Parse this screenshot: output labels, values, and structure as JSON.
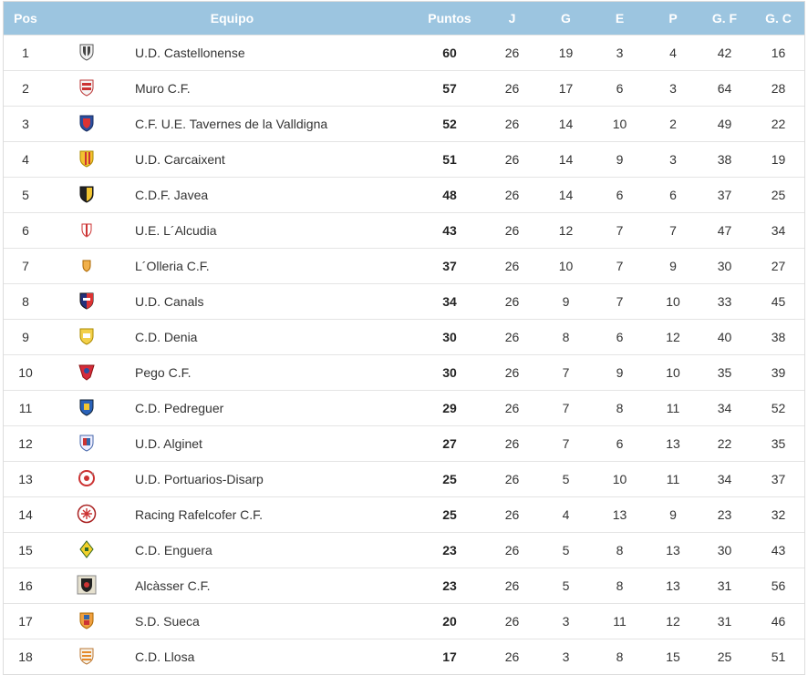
{
  "header": {
    "pos": "Pos",
    "team": "Equipo",
    "points": "Puntos",
    "played": "J",
    "won": "G",
    "drawn": "E",
    "lost": "P",
    "gf": "G. F",
    "gc": "G. C"
  },
  "rows": [
    {
      "pos": "1",
      "team": "U.D. Castellonense",
      "pts": "60",
      "j": "26",
      "g": "19",
      "e": "3",
      "p": "4",
      "gf": "42",
      "gc": "16",
      "crest": "shield-white-black"
    },
    {
      "pos": "2",
      "team": "Muro C.F.",
      "pts": "57",
      "j": "26",
      "g": "17",
      "e": "6",
      "p": "3",
      "gf": "64",
      "gc": "28",
      "crest": "shield-red-white"
    },
    {
      "pos": "3",
      "team": "C.F. U.E. Tavernes de la Valldigna",
      "pts": "52",
      "j": "26",
      "g": "14",
      "e": "10",
      "p": "2",
      "gf": "49",
      "gc": "22",
      "crest": "shield-blue-red"
    },
    {
      "pos": "4",
      "team": "U.D. Carcaixent",
      "pts": "51",
      "j": "26",
      "g": "14",
      "e": "9",
      "p": "3",
      "gf": "38",
      "gc": "19",
      "crest": "shield-yellow-red"
    },
    {
      "pos": "5",
      "team": "C.D.F. Javea",
      "pts": "48",
      "j": "26",
      "g": "14",
      "e": "6",
      "p": "6",
      "gf": "37",
      "gc": "25",
      "crest": "shield-black-yellow"
    },
    {
      "pos": "6",
      "team": "U.E. L´Alcudia",
      "pts": "43",
      "j": "26",
      "g": "12",
      "e": "7",
      "p": "7",
      "gf": "47",
      "gc": "34",
      "crest": "shield-red-small"
    },
    {
      "pos": "7",
      "team": "L´Olleria C.F.",
      "pts": "37",
      "j": "26",
      "g": "10",
      "e": "7",
      "p": "9",
      "gf": "30",
      "gc": "27",
      "crest": "shield-orange-small"
    },
    {
      "pos": "8",
      "team": "U.D. Canals",
      "pts": "34",
      "j": "26",
      "g": "9",
      "e": "7",
      "p": "10",
      "gf": "33",
      "gc": "45",
      "crest": "shield-navy-red"
    },
    {
      "pos": "9",
      "team": "C.D. Denia",
      "pts": "30",
      "j": "26",
      "g": "8",
      "e": "6",
      "p": "12",
      "gf": "40",
      "gc": "38",
      "crest": "shield-yellow-white"
    },
    {
      "pos": "10",
      "team": "Pego C.F.",
      "pts": "30",
      "j": "26",
      "g": "7",
      "e": "9",
      "p": "10",
      "gf": "35",
      "gc": "39",
      "crest": "shield-red-blue"
    },
    {
      "pos": "11",
      "team": "C.D. Pedreguer",
      "pts": "29",
      "j": "26",
      "g": "7",
      "e": "8",
      "p": "11",
      "gf": "34",
      "gc": "52",
      "crest": "shield-blue-yellow"
    },
    {
      "pos": "12",
      "team": "U.D. Alginet",
      "pts": "27",
      "j": "26",
      "g": "7",
      "e": "6",
      "p": "13",
      "gf": "22",
      "gc": "35",
      "crest": "shield-blue-red-small"
    },
    {
      "pos": "13",
      "team": "U.D. Portuarios-Disarp",
      "pts": "25",
      "j": "26",
      "g": "5",
      "e": "10",
      "p": "11",
      "gf": "34",
      "gc": "37",
      "crest": "badge-red-anchor"
    },
    {
      "pos": "14",
      "team": "Racing Rafelcofer C.F.",
      "pts": "25",
      "j": "26",
      "g": "4",
      "e": "13",
      "p": "9",
      "gf": "23",
      "gc": "32",
      "crest": "circle-red-white"
    },
    {
      "pos": "15",
      "team": "C.D. Enguera",
      "pts": "23",
      "j": "26",
      "g": "5",
      "e": "8",
      "p": "13",
      "gf": "30",
      "gc": "43",
      "crest": "diamond-yellow-green"
    },
    {
      "pos": "16",
      "team": "Alcàsser C.F.",
      "pts": "23",
      "j": "26",
      "g": "5",
      "e": "8",
      "p": "13",
      "gf": "31",
      "gc": "56",
      "crest": "square-black-red"
    },
    {
      "pos": "17",
      "team": "S.D. Sueca",
      "pts": "20",
      "j": "26",
      "g": "3",
      "e": "11",
      "p": "12",
      "gf": "31",
      "gc": "46",
      "crest": "shield-orange-blue"
    },
    {
      "pos": "18",
      "team": "C.D. Llosa",
      "pts": "17",
      "j": "26",
      "g": "3",
      "e": "8",
      "p": "15",
      "gf": "25",
      "gc": "51",
      "crest": "shield-orange-stripes"
    }
  ]
}
